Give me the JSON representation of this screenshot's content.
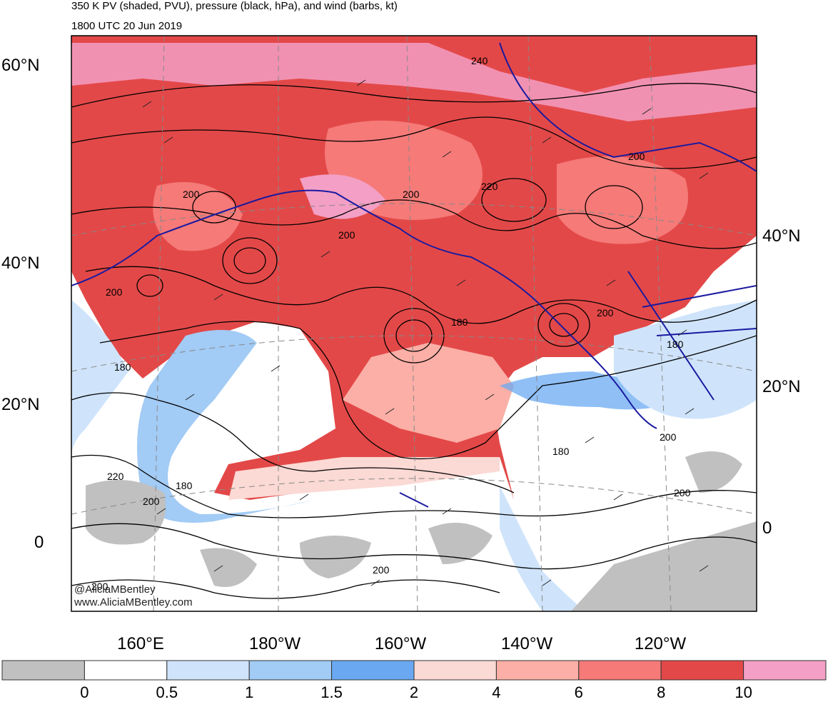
{
  "title": "350 K PV (shaded, PVU), pressure (black, hPa), and wind (barbs, kt)",
  "valid_time": "1800 UTC 20 Jun 2019",
  "lat_labels_left": [
    "60°N",
    "40°N",
    "20°N",
    "0"
  ],
  "lat_labels_right": [
    "40°N",
    "20°N",
    "0"
  ],
  "lon_labels": [
    "160°E",
    "180°W",
    "160°W",
    "140°W",
    "120°W"
  ],
  "contour_labels": [
    "240",
    "220",
    "200",
    "200",
    "200",
    "200",
    "200",
    "180",
    "200",
    "180",
    "180",
    "220",
    "180",
    "200",
    "180",
    "200",
    "200",
    "200",
    "200"
  ],
  "colorbar": {
    "ticks": [
      "0",
      "0.5",
      "1",
      "1.5",
      "2",
      "4",
      "6",
      "8",
      "10"
    ],
    "colors": [
      "#c0c0c0",
      "#ffffff",
      "#cfe4fb",
      "#a2cbf5",
      "#6aa9f2",
      "#fbd9d4",
      "#fbafa6",
      "#f57a78",
      "#e34848",
      "#f39fc6"
    ]
  },
  "credit": [
    "@AliciaMBentley",
    "www.AliciaMBentley.com"
  ]
}
